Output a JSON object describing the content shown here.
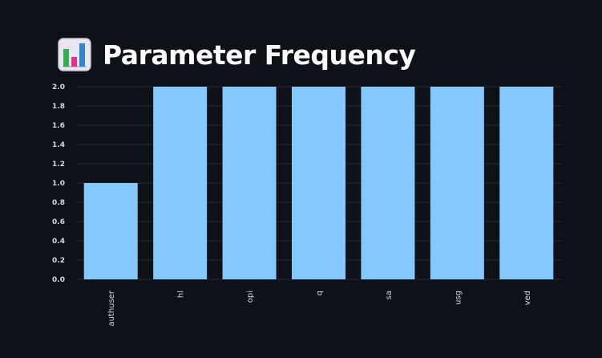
{
  "header": {
    "title": "Parameter Frequency",
    "icon": "bar-chart-icon"
  },
  "colors": {
    "background": "#0e1117",
    "bar": "#83c9ff",
    "grid": "#262a33",
    "text": "#fafafa",
    "axis_text": "#d5d8de"
  },
  "chart_data": {
    "type": "bar",
    "title": "Parameter Frequency",
    "xlabel": "",
    "ylabel": "",
    "categories": [
      "authuser",
      "hl",
      "opi",
      "q",
      "sa",
      "usg",
      "ved"
    ],
    "values": [
      1,
      2,
      2,
      2,
      2,
      2,
      2
    ],
    "ylim": [
      0,
      2
    ],
    "yticks": [
      0.0,
      0.2,
      0.4,
      0.6,
      0.8,
      1.0,
      1.2,
      1.4,
      1.6,
      1.8,
      2.0
    ],
    "ytick_labels": [
      "0.0",
      "0.2",
      "0.4",
      "0.6",
      "0.8",
      "1.0",
      "1.2",
      "1.4",
      "1.6",
      "1.8",
      "2.0"
    ],
    "grid": true,
    "legend": "none"
  }
}
